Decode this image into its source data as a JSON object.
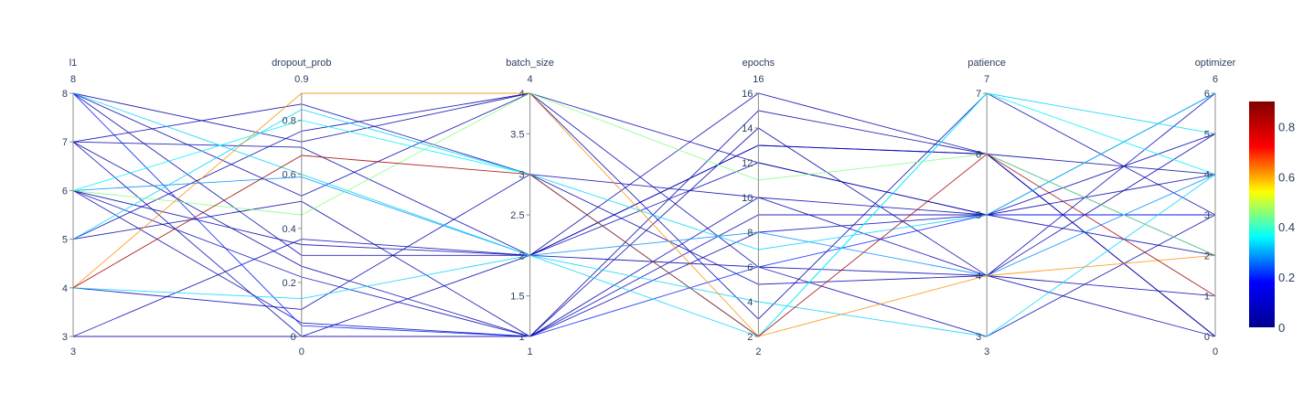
{
  "chart_data": {
    "type": "parallel_coordinates",
    "dimensions": [
      {
        "label": "l1",
        "range": [
          3,
          8
        ],
        "ticks": [
          3,
          4,
          5,
          6,
          7,
          8
        ],
        "min_label": "3",
        "max_label": "8"
      },
      {
        "label": "dropout_prob",
        "range": [
          0,
          0.9
        ],
        "ticks": [
          0,
          0.2,
          0.4,
          0.6,
          0.8
        ],
        "min_label": "0",
        "max_label": "0.9"
      },
      {
        "label": "batch_size",
        "range": [
          1,
          4
        ],
        "ticks": [
          1,
          1.5,
          2,
          2.5,
          3,
          3.5,
          4
        ],
        "min_label": "1",
        "max_label": "4"
      },
      {
        "label": "epochs",
        "range": [
          2,
          16
        ],
        "ticks": [
          2,
          4,
          6,
          8,
          10,
          12,
          14,
          16
        ],
        "min_label": "2",
        "max_label": "16"
      },
      {
        "label": "patience",
        "range": [
          3,
          7
        ],
        "ticks": [
          3,
          4,
          5,
          6,
          7
        ],
        "min_label": "3",
        "max_label": "7"
      },
      {
        "label": "optimizer",
        "range": [
          0,
          6
        ],
        "ticks": [
          0,
          1,
          2,
          3,
          4,
          5,
          6
        ],
        "min_label": "0",
        "max_label": "6"
      }
    ],
    "colorscale": {
      "name": "Jet",
      "range": [
        0,
        0.9
      ],
      "ticks": [
        0,
        0.2,
        0.4,
        0.6,
        0.8
      ],
      "stops": [
        "#00008f",
        "#0000ff",
        "#00ffff",
        "#ffff00",
        "#ff0000",
        "#800000"
      ]
    },
    "lines": [
      {
        "values": [
          4,
          0.9,
          4,
          2,
          4,
          2
        ],
        "color": 0.62
      },
      {
        "values": [
          4,
          0.67,
          3,
          2,
          6,
          1
        ],
        "color": 0.85
      },
      {
        "values": [
          6,
          0.45,
          4,
          11,
          6,
          2
        ],
        "color": 0.45
      },
      {
        "values": [
          5,
          0.84,
          3,
          7,
          5,
          6
        ],
        "color": 0.33
      },
      {
        "values": [
          8,
          0.6,
          2,
          2,
          7,
          5
        ],
        "color": 0.33
      },
      {
        "values": [
          6,
          0.8,
          3,
          2,
          7,
          4
        ],
        "color": 0.35
      },
      {
        "values": [
          6,
          0.59,
          2,
          8,
          4,
          4
        ],
        "color": 0.28
      },
      {
        "values": [
          4,
          0.14,
          2,
          4,
          3,
          4
        ],
        "color": 0.33
      },
      {
        "values": [
          8,
          0.04,
          1,
          6,
          5,
          3
        ],
        "color": 0.2
      },
      {
        "values": [
          3,
          0.36,
          2,
          13,
          6,
          0
        ],
        "color": 0.05
      },
      {
        "values": [
          8,
          0.72,
          4,
          12,
          5,
          3
        ],
        "color": 0.05
      },
      {
        "values": [
          7,
          0.86,
          3,
          10,
          4,
          6
        ],
        "color": 0.06
      },
      {
        "values": [
          7,
          0.7,
          2,
          13,
          6,
          2
        ],
        "color": 0.05
      },
      {
        "values": [
          7,
          0,
          1,
          9,
          5,
          5
        ],
        "color": 0.06
      },
      {
        "values": [
          6,
          0.34,
          2,
          6,
          4,
          0
        ],
        "color": 0.05
      },
      {
        "values": [
          5,
          0.5,
          1,
          15,
          6,
          4
        ],
        "color": 0.04
      },
      {
        "values": [
          6,
          0.22,
          1,
          8,
          5,
          2
        ],
        "color": 0.06
      },
      {
        "values": [
          8,
          0.52,
          4,
          3,
          7,
          3
        ],
        "color": 0.05
      },
      {
        "values": [
          4,
          0.1,
          3,
          5,
          4,
          1
        ],
        "color": 0.05
      },
      {
        "values": [
          3,
          0,
          2,
          12,
          5,
          6
        ],
        "color": 0.06
      },
      {
        "values": [
          7,
          0.26,
          1,
          14,
          4,
          5
        ],
        "color": 0.04
      },
      {
        "values": [
          6,
          0.05,
          1,
          10,
          5,
          4
        ],
        "color": 0.05
      },
      {
        "values": [
          8,
          0.3,
          2,
          16,
          6,
          0
        ],
        "color": 0.04
      },
      {
        "values": [
          5,
          0.76,
          4,
          6,
          3,
          3
        ],
        "color": 0.05
      }
    ]
  }
}
